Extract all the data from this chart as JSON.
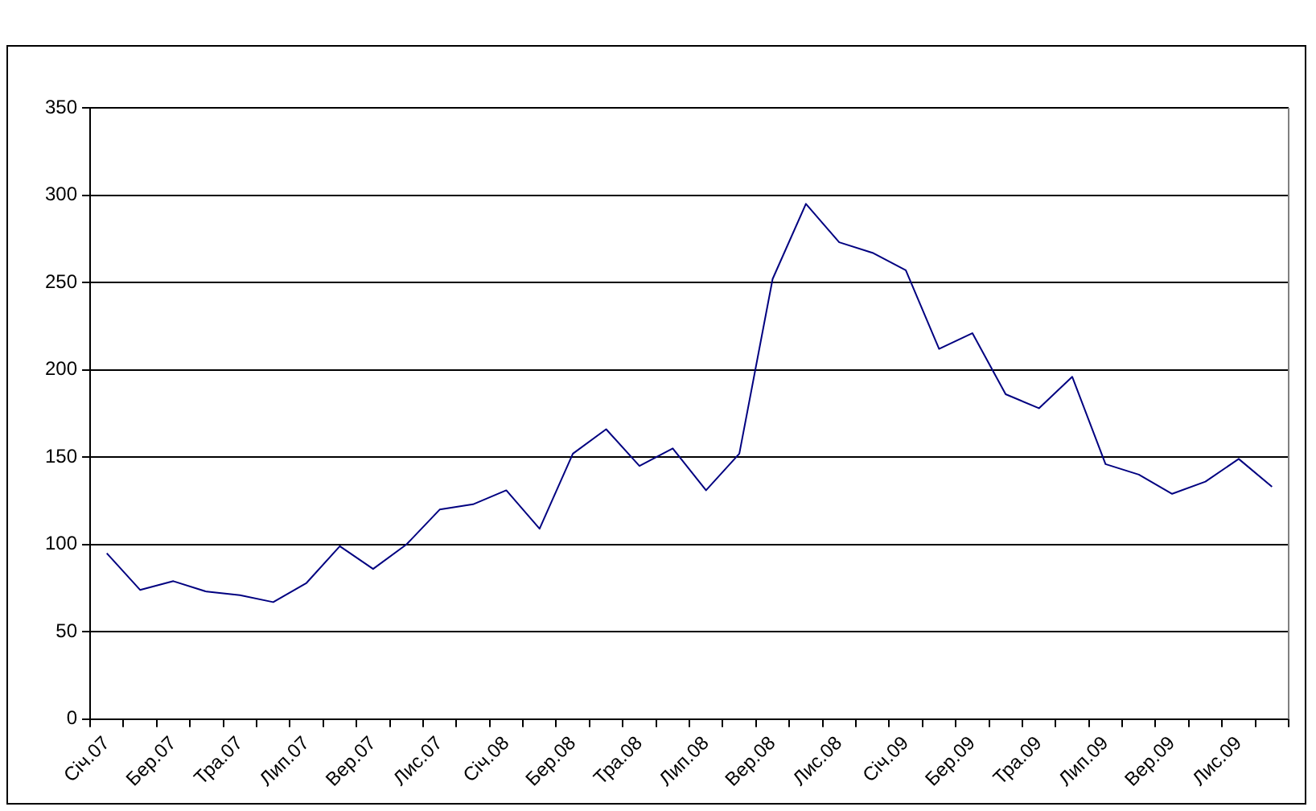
{
  "chart_data": {
    "type": "line",
    "categories": [
      "Січ.07",
      null,
      "Бер.07",
      null,
      "Тра.07",
      null,
      "Лип.07",
      null,
      "Вер.07",
      null,
      "Лис.07",
      null,
      "Січ.08",
      null,
      "Бер.08",
      null,
      "Тра.08",
      null,
      "Лип.08",
      null,
      "Вер.08",
      null,
      "Лис.08",
      null,
      "Січ.09",
      null,
      "Бер.09",
      null,
      "Тра.09",
      null,
      "Лип.09",
      null,
      "Вер.09",
      null,
      "Лис.09",
      null
    ],
    "series": [
      {
        "color": "#000080",
        "values": [
          95,
          74,
          79,
          73,
          71,
          67,
          78,
          99,
          86,
          100,
          120,
          123,
          131,
          109,
          152,
          166,
          145,
          155,
          131,
          152,
          252,
          295,
          273,
          267,
          257,
          212,
          221,
          186,
          178,
          196,
          146,
          140,
          129,
          136,
          149,
          133
        ]
      }
    ],
    "ylim": [
      0,
      350
    ],
    "yticks": [
      0,
      50,
      100,
      150,
      200,
      250,
      300,
      350
    ],
    "grid": "y",
    "legend": false,
    "marker": "none",
    "line_style": "solid"
  }
}
